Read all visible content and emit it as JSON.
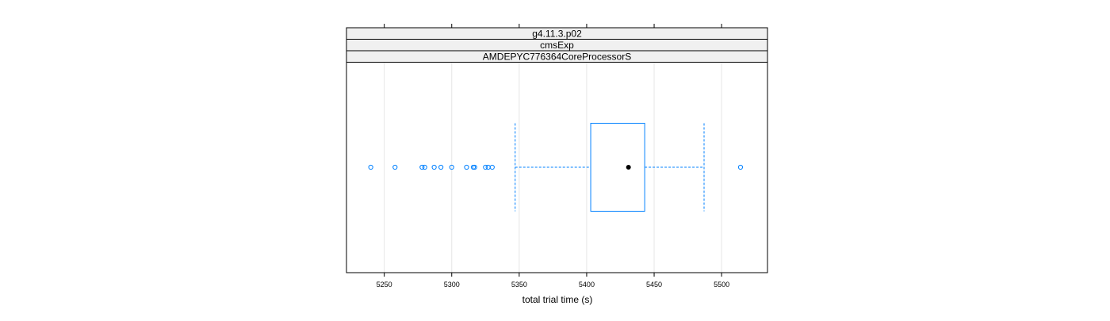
{
  "chart_data": {
    "type": "boxplot",
    "strips": [
      "g4.11.3.p02",
      "cmsExp",
      "AMDEPYC776364CoreProcessorS"
    ],
    "xlabel": "total trial time (s)",
    "xlim": [
      5222,
      5534
    ],
    "x_ticks": [
      5250,
      5300,
      5350,
      5400,
      5450,
      5500
    ],
    "x_tick_labels": [
      "5250",
      "5300",
      "5350",
      "5400",
      "5450",
      "5500"
    ],
    "grid": true,
    "box": {
      "whisker_low": 5347,
      "q1": 5403,
      "median": 5431,
      "q3": 5443,
      "whisker_high": 5487
    },
    "outliers": [
      5240,
      5258,
      5278,
      5280,
      5287,
      5292,
      5300,
      5311,
      5316,
      5317,
      5325,
      5327,
      5330,
      5514
    ],
    "colors": {
      "box": "#0080FF",
      "strip_fill": "#F0F0F0",
      "grid": "#E6E6E6",
      "median": "#000000"
    }
  }
}
